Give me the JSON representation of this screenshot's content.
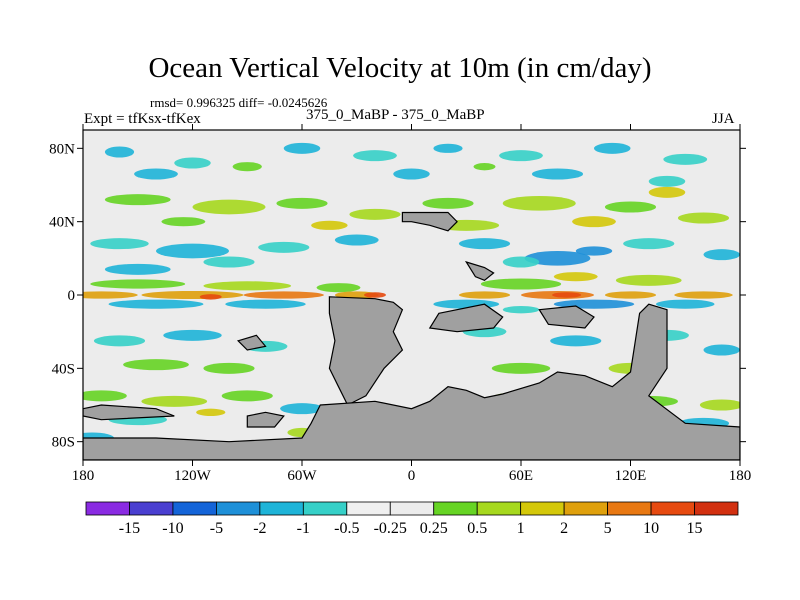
{
  "header": {
    "title": "Ocean Vertical Velocity at 10m (in cm/day)",
    "stats": "rmsd= 0.996325 diff= -0.0245626",
    "experiment": "Expt = tfKsx-tfKex",
    "runs": "375_0_MaBP - 375_0_MaBP",
    "season": "JJA"
  },
  "chart_data": {
    "type": "heatmap",
    "title": "Ocean Vertical Velocity at 10m (in cm/day)",
    "xlabel": "",
    "ylabel": "",
    "xlim": [
      -180,
      180
    ],
    "ylim": [
      -90,
      90
    ],
    "x_ticks": [
      {
        "value": -180,
        "label": "180"
      },
      {
        "value": -120,
        "label": "120W"
      },
      {
        "value": -60,
        "label": "60W"
      },
      {
        "value": 0,
        "label": "0"
      },
      {
        "value": 60,
        "label": "60E"
      },
      {
        "value": 120,
        "label": "120E"
      },
      {
        "value": 180,
        "label": "180"
      }
    ],
    "y_ticks": [
      {
        "value": 80,
        "label": "80N"
      },
      {
        "value": 40,
        "label": "40N"
      },
      {
        "value": 0,
        "label": "0"
      },
      {
        "value": -40,
        "label": "40S"
      },
      {
        "value": -80,
        "label": "80S"
      }
    ],
    "colorbar": {
      "levels": [
        "-15",
        "-10",
        "-5",
        "-2",
        "-1",
        "-0.5",
        "-0.25",
        "0.25",
        "0.5",
        "1",
        "2",
        "5",
        "10",
        "15"
      ],
      "colors": [
        "#8a2be2",
        "#4a3fd0",
        "#1464d8",
        "#1e90d8",
        "#1eb4d8",
        "#36d0c8",
        "#f0f0f0",
        "#ececec",
        "#66d424",
        "#a6d81e",
        "#d4c80a",
        "#dfa00c",
        "#e87812",
        "#e64a10",
        "#d23010"
      ]
    },
    "field": {
      "land_color": "#a0a0a0",
      "background_value_range": [
        -0.25,
        0.25
      ],
      "bands": [
        {
          "name": "equatorial-upwelling",
          "lat_center": 0,
          "value": 5
        },
        {
          "name": "south-equatorial-band",
          "lat_center": -5,
          "value": -1
        },
        {
          "name": "northern-subtropical-band",
          "lat_center": 18,
          "value": -1
        },
        {
          "name": "northern-midlatitude-band",
          "lat_center": 45,
          "value": 1
        },
        {
          "name": "southern-ocean-band",
          "lat_center": -58,
          "value": 1
        },
        {
          "name": "arctic-band",
          "lat_center": 72,
          "value": -0.5
        }
      ]
    }
  }
}
